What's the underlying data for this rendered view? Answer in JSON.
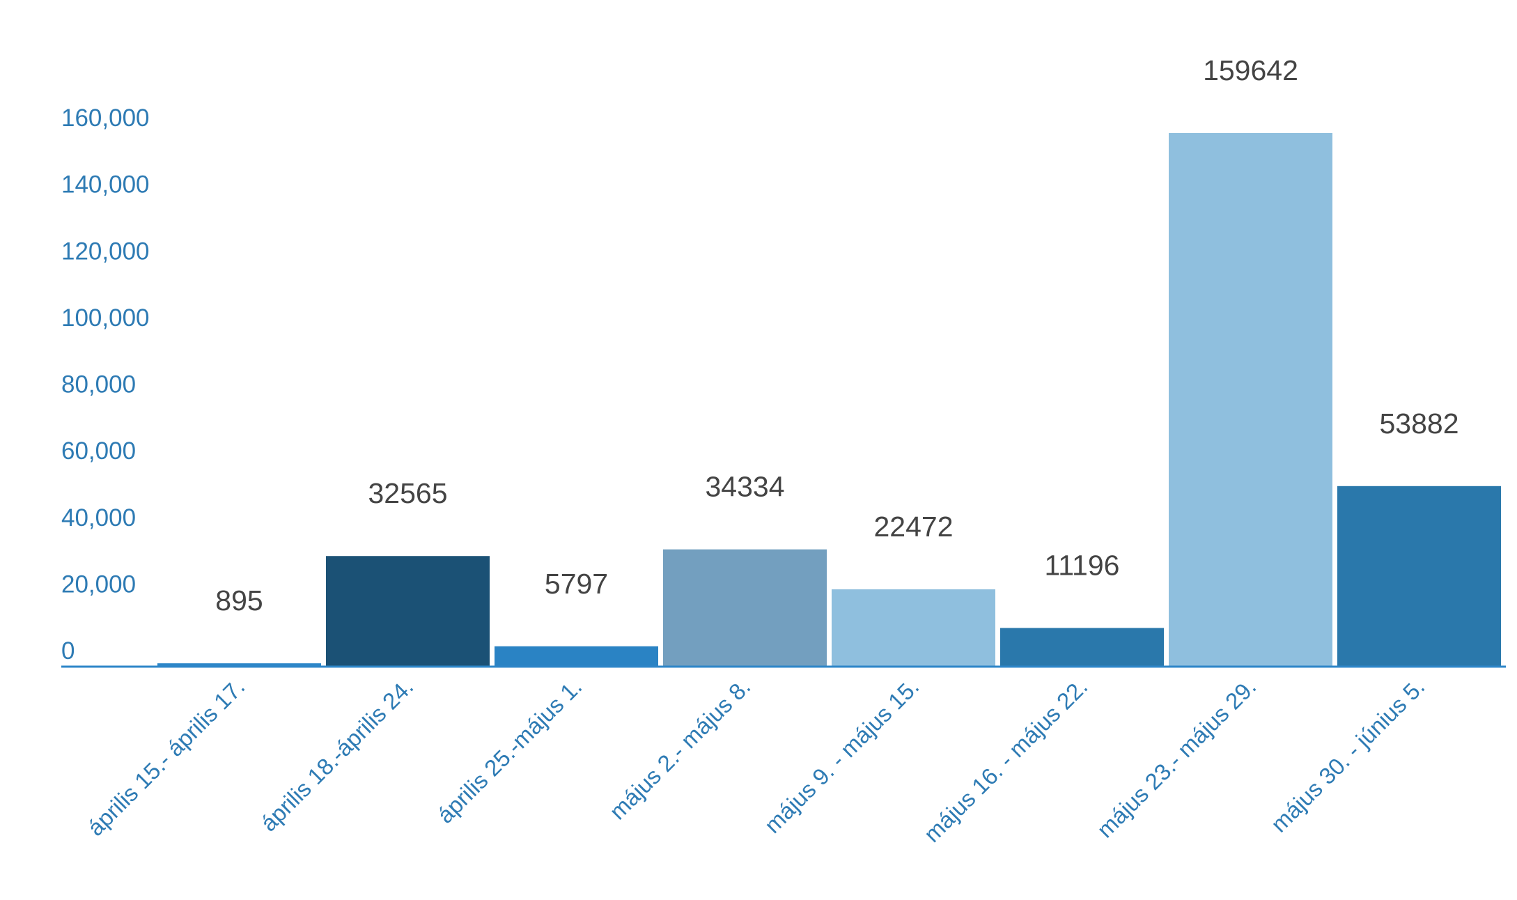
{
  "chart_data": {
    "type": "bar",
    "title": "",
    "xlabel": "",
    "ylabel": "",
    "ylim": [
      0,
      160000
    ],
    "yticks": [
      0,
      20000,
      40000,
      60000,
      80000,
      100000,
      120000,
      140000,
      160000
    ],
    "ytick_labels": [
      "0",
      "20,000",
      "40,000",
      "60,000",
      "80,000",
      "100,000",
      "120,000",
      "140,000",
      "160,000"
    ],
    "categories": [
      "április 15.- április 17.",
      "április 18.-április 24.",
      "április 25.-május 1.",
      "május 2.- május 8.",
      "május 9. - május 15.",
      "május 16. - május 22.",
      "május 23.- május 29.",
      "május 30. - június 5."
    ],
    "values": [
      895,
      32565,
      5797,
      34334,
      22472,
      11196,
      159642,
      53882
    ],
    "bar_heights_estimated": [
      800,
      33000,
      5900,
      35000,
      23000,
      11400,
      160000,
      54000
    ],
    "data_labels": [
      "895",
      "32565",
      "5797",
      "34334",
      "22472",
      "11196",
      "159642",
      "53882"
    ],
    "colors": [
      "#2e86c8",
      "#1b5175",
      "#2a83c4",
      "#739fbf",
      "#8fbfde",
      "#2a78ab",
      "#8fbfde",
      "#2a78ab"
    ],
    "axis_color": "#2e86c8",
    "label_color": "#2e7bb4",
    "value_color": "#444444",
    "grid": false,
    "legend": "none"
  }
}
